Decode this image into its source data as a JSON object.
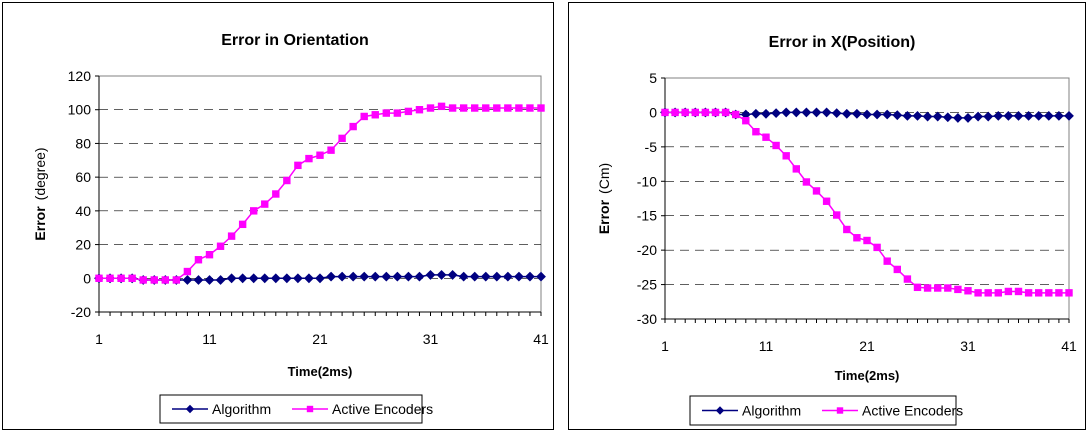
{
  "chart_data": [
    {
      "type": "line",
      "title": "Error in Orientation",
      "xlabel": "Time(2ms)",
      "ylabel_bold": "Error",
      "ylabel_rest": "(degree)",
      "ylim": [
        -20,
        120
      ],
      "yticks": [
        -20,
        0,
        20,
        40,
        60,
        80,
        100,
        120
      ],
      "xticks": [
        1,
        11,
        21,
        31,
        41
      ],
      "xlim": [
        1,
        41
      ],
      "grid": "horizontal dashed",
      "legend_position": "bottom",
      "x": [
        1,
        2,
        3,
        4,
        5,
        6,
        7,
        8,
        9,
        10,
        11,
        12,
        13,
        14,
        15,
        16,
        17,
        18,
        19,
        20,
        21,
        22,
        23,
        24,
        25,
        26,
        27,
        28,
        29,
        30,
        31,
        32,
        33,
        34,
        35,
        36,
        37,
        38,
        39,
        40,
        41
      ],
      "series": [
        {
          "name": "Algorithm",
          "color": "#000080",
          "marker": "diamond",
          "values": [
            0,
            0,
            0,
            0,
            -1,
            -1,
            -1,
            -1,
            -1,
            -1,
            -1,
            -1,
            0,
            0,
            0,
            0,
            0,
            0,
            0,
            0,
            0,
            1,
            1,
            1,
            1,
            1,
            1,
            1,
            1,
            1,
            2,
            2,
            2,
            1,
            1,
            1,
            1,
            1,
            1,
            1,
            1
          ]
        },
        {
          "name": "Active Encoders",
          "color": "#ff00ff",
          "marker": "square",
          "values": [
            0,
            0,
            0,
            0,
            -1,
            -1,
            -1,
            -1,
            4,
            11,
            14,
            19,
            25,
            32,
            40,
            44,
            50,
            58,
            67,
            71,
            73,
            76,
            83,
            90,
            96,
            97,
            98,
            98,
            99,
            100,
            101,
            102,
            101,
            101,
            101,
            101,
            101,
            101,
            101,
            101,
            101
          ]
        }
      ]
    },
    {
      "type": "line",
      "title": "Error in X(Position)",
      "xlabel": "Time(2ms)",
      "ylabel_bold": "Error",
      "ylabel_rest": "(Cm)",
      "ylim": [
        -30,
        5
      ],
      "yticks": [
        -30,
        -25,
        -20,
        -15,
        -10,
        -5,
        0,
        5
      ],
      "xticks": [
        1,
        11,
        21,
        31,
        41
      ],
      "xlim": [
        1,
        41
      ],
      "grid": "horizontal dashed",
      "legend_position": "bottom",
      "x": [
        1,
        2,
        3,
        4,
        5,
        6,
        7,
        8,
        9,
        10,
        11,
        12,
        13,
        14,
        15,
        16,
        17,
        18,
        19,
        20,
        21,
        22,
        23,
        24,
        25,
        26,
        27,
        28,
        29,
        30,
        31,
        32,
        33,
        34,
        35,
        36,
        37,
        38,
        39,
        40,
        41
      ],
      "series": [
        {
          "name": "Algorithm",
          "color": "#000080",
          "marker": "diamond",
          "values": [
            0,
            0,
            0,
            0,
            0,
            0,
            0,
            -0.3,
            -0.3,
            -0.2,
            -0.2,
            -0.1,
            0,
            0,
            0,
            0,
            0,
            -0.1,
            -0.2,
            -0.2,
            -0.3,
            -0.3,
            -0.3,
            -0.4,
            -0.5,
            -0.5,
            -0.6,
            -0.6,
            -0.7,
            -0.8,
            -0.8,
            -0.6,
            -0.6,
            -0.5,
            -0.5,
            -0.5,
            -0.5,
            -0.5,
            -0.5,
            -0.5,
            -0.5
          ]
        },
        {
          "name": "Active Encoders",
          "color": "#ff00ff",
          "marker": "square",
          "values": [
            0,
            0,
            0,
            0,
            0,
            0,
            0,
            -0.3,
            -1.2,
            -2.8,
            -3.6,
            -4.8,
            -6.3,
            -8.2,
            -10.1,
            -11.4,
            -12.9,
            -14.9,
            -17.0,
            -18.2,
            -18.6,
            -19.6,
            -21.6,
            -22.8,
            -24.2,
            -25.4,
            -25.5,
            -25.5,
            -25.5,
            -25.7,
            -25.9,
            -26.2,
            -26.2,
            -26.2,
            -26.0,
            -26.0,
            -26.2,
            -26.2,
            -26.2,
            -26.2,
            -26.2
          ]
        }
      ]
    }
  ]
}
